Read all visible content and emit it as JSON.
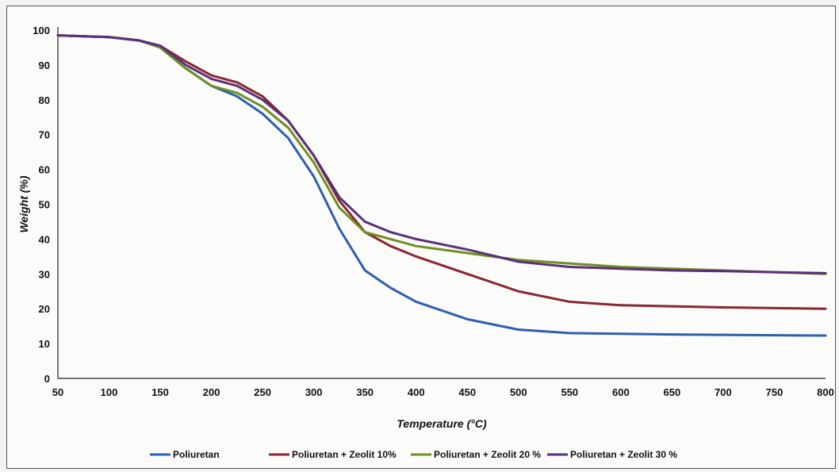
{
  "chart_data": {
    "type": "line",
    "xlabel": "Temperature (°C)",
    "ylabel": "Weight (%)",
    "xlim": [
      50,
      800
    ],
    "ylim": [
      0,
      100
    ],
    "x_ticks": [
      50,
      100,
      150,
      200,
      250,
      300,
      350,
      400,
      450,
      500,
      550,
      600,
      650,
      700,
      750,
      800
    ],
    "y_ticks": [
      0,
      10,
      20,
      30,
      40,
      50,
      60,
      70,
      80,
      90,
      100
    ],
    "grid": false,
    "legend_position": "bottom",
    "series": [
      {
        "name": "Poliuretan",
        "color": "#2e5fb0",
        "x": [
          50,
          100,
          130,
          150,
          175,
          200,
          225,
          250,
          275,
          300,
          325,
          350,
          375,
          400,
          450,
          500,
          550,
          600,
          650,
          700,
          750,
          800
        ],
        "y": [
          98.5,
          98,
          97,
          95,
          89,
          84,
          81,
          76,
          69,
          58,
          43,
          31,
          26,
          22,
          17,
          14,
          13,
          12.8,
          12.6,
          12.5,
          12.4,
          12.3
        ]
      },
      {
        "name": "Poliuretan + Zeolit 10%",
        "color": "#8a2630",
        "x": [
          50,
          100,
          130,
          150,
          175,
          200,
          225,
          250,
          275,
          300,
          325,
          350,
          375,
          400,
          450,
          500,
          550,
          600,
          650,
          700,
          750,
          800
        ],
        "y": [
          98.5,
          98,
          97,
          95.5,
          91,
          87,
          85,
          81,
          74,
          64,
          51,
          42,
          38,
          35,
          30,
          25,
          22,
          21,
          20.7,
          20.4,
          20.2,
          20
        ]
      },
      {
        "name": "Poliuretan + Zeolit 20 %",
        "color": "#6f8f1f",
        "x": [
          50,
          100,
          130,
          150,
          175,
          200,
          225,
          250,
          275,
          300,
          325,
          350,
          375,
          400,
          450,
          500,
          550,
          600,
          650,
          700,
          750,
          800
        ],
        "y": [
          98.5,
          98,
          97,
          95,
          89,
          84,
          82,
          78,
          72,
          62,
          49,
          42,
          40,
          38,
          36,
          34,
          33,
          32,
          31.5,
          31,
          30.5,
          30
        ]
      },
      {
        "name": "Poliuretan + Zeolit 30 %",
        "color": "#5b2f7a",
        "x": [
          50,
          100,
          130,
          150,
          175,
          200,
          225,
          250,
          275,
          300,
          325,
          350,
          375,
          400,
          450,
          500,
          550,
          600,
          650,
          700,
          750,
          800
        ],
        "y": [
          98.5,
          98,
          97,
          95.5,
          90,
          86,
          84,
          80,
          74,
          64,
          52,
          45,
          42,
          40,
          37,
          33.5,
          32,
          31.5,
          31,
          30.8,
          30.5,
          30.2
        ]
      }
    ]
  }
}
